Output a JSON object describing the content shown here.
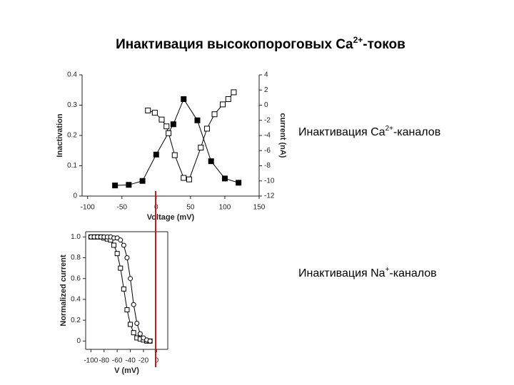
{
  "slide": {
    "title": {
      "text": "Инактивация высокопороговых Ca",
      "sup": "2+",
      "tail": "-токов"
    },
    "labels": [
      {
        "text": "Инактивация Ca",
        "sup": "2+",
        "tail": "-каналов"
      },
      {
        "text": "Инактивация Na",
        "sup": "+",
        "tail": "-каналов"
      }
    ]
  },
  "chart_data": [
    {
      "type": "line",
      "x_label": "Voltage (mV)",
      "y_label": "Inactivation",
      "y2_label": "current (nA)",
      "xlim": [
        -108,
        150
      ],
      "xticks": [
        -100,
        -50,
        0,
        50,
        100,
        150
      ],
      "ylim": [
        0,
        0.4
      ],
      "yticks": [
        0,
        0.1,
        0.2,
        0.3,
        0.4
      ],
      "y2lim": [
        -12,
        4
      ],
      "y2ticks": [
        -12,
        -10,
        -8,
        -6,
        -4,
        -2,
        0,
        2,
        4
      ],
      "series": [
        {
          "marker": "square",
          "filled": true,
          "color": "#000000",
          "x": [
            -60,
            -40,
            -20,
            0,
            25,
            40,
            60,
            80,
            100,
            120
          ],
          "values": [
            0.035,
            0.037,
            0.05,
            0.137,
            0.237,
            0.32,
            0.25,
            0.115,
            0.058,
            0.044
          ]
        },
        {
          "marker": "square",
          "filled": false,
          "color": "#000000",
          "axis": "y2",
          "x": [
            -12,
            -2,
            8,
            15,
            18,
            27,
            40,
            48,
            65,
            74,
            85,
            97,
            105,
            113
          ],
          "values": [
            -0.7,
            -1,
            -1.9,
            -2.8,
            -3.7,
            -6.6,
            -9.6,
            -9.8,
            -5.6,
            -3.1,
            -1.2,
            0.1,
            0.8,
            1.7
          ]
        }
      ]
    },
    {
      "type": "line",
      "frame": true,
      "x_label": "V (mV)",
      "y_label": "Normalized current",
      "xlim": [
        -108,
        17
      ],
      "xticks": [
        -100,
        -80,
        -60,
        -40,
        -20,
        0
      ],
      "ylim": [
        -0.08,
        1.05
      ],
      "yticks": [
        0,
        0.2,
        0.4,
        0.6,
        0.8,
        {
          "value": 1,
          "label": "1.0"
        }
      ],
      "x": [
        -100,
        -95,
        -90,
        -85,
        -80,
        -75,
        -70,
        -65,
        -60,
        -55,
        -50,
        -45,
        -40,
        -35,
        -30,
        -25,
        -20,
        -15,
        -10
      ],
      "series": [
        {
          "marker": "square",
          "filled": false,
          "color": "#000000",
          "values": [
            1,
            1,
            1,
            1,
            0.99,
            0.98,
            0.97,
            0.92,
            0.84,
            0.7,
            0.5,
            0.3,
            0.16,
            0.08,
            0.03,
            0.02,
            0.01,
            0,
            0
          ]
        },
        {
          "marker": "circle",
          "filled": false,
          "color": "#000000",
          "values": [
            1,
            1,
            1,
            1,
            1,
            1,
            1,
            0.99,
            0.99,
            0.97,
            0.92,
            0.8,
            0.6,
            0.35,
            0.17,
            0.07,
            0.03,
            0.01,
            0
          ]
        }
      ]
    }
  ]
}
